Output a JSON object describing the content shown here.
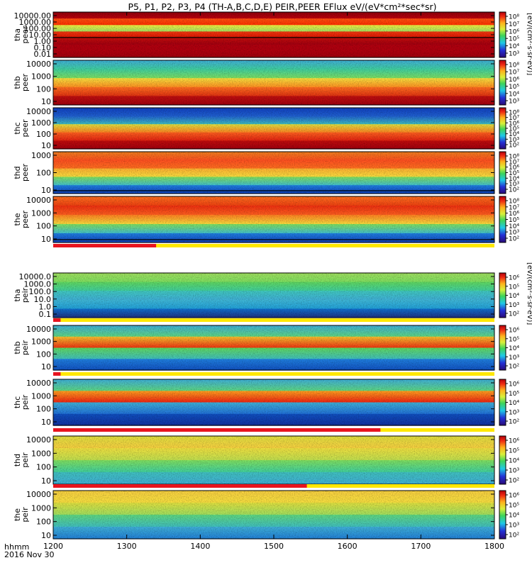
{
  "title": "P5, P1, P2, P3, P4 (TH-A,B,C,D,E) PEIR,PEER EFlux eV/(eV*cm²*sec*sr)",
  "chart_data": {
    "type": "heatmap",
    "title": "P5, P1, P2, P3, P4 (TH-A,B,C,D,E) PEIR,PEER EFlux eV/(eV*cm²*sec*sr)",
    "x_ticks": [
      "1200",
      "1300",
      "1400",
      "1500",
      "1600",
      "1700",
      "1800"
    ],
    "x_range": [
      1200,
      1800
    ],
    "time_label": "hhmm",
    "date_label": "2016 Nov 30",
    "colorbar_unit_label": "[eV/(cm²·s·sr·eV)]",
    "panels": [
      {
        "probe": "tha",
        "species": "peer",
        "label": [
          "tha",
          "peer"
        ],
        "y_scale": "log",
        "y_ticks": [
          "10000.00",
          "1000.00",
          "100.00",
          "10.00",
          "1.00",
          "0.10",
          "0.01"
        ],
        "colorbar_ticks": [
          "10⁸",
          "10⁷",
          "10⁶",
          "10⁵",
          "10⁴",
          "10³"
        ],
        "bands": [
          {
            "from": "#8f000c",
            "to": "#c2000c"
          },
          {
            "from": "#ff5010",
            "to": "#ff3000"
          },
          {
            "from": "#f0f040",
            "to": "#a0e060"
          },
          {
            "from": "#ef3a10",
            "to": "#e01000"
          },
          {
            "from": "#c40c0c",
            "to": "#a00010"
          },
          {
            "from": "#b0000f",
            "to": "#b0000f"
          },
          {
            "from": "#b0000f",
            "to": "#a0000e"
          }
        ],
        "overlay_line": true,
        "flag": "none"
      },
      {
        "probe": "thb",
        "species": "peer",
        "label": [
          "thb",
          "peer"
        ],
        "y_scale": "log",
        "y_ticks": [
          "10000",
          "1000",
          "100",
          "10"
        ],
        "colorbar_ticks": [
          "10⁸",
          "10⁷",
          "10⁶",
          "10⁵",
          "10⁴",
          "10³"
        ],
        "bands": [
          {
            "from": "#40b0d8",
            "to": "#40d0a0"
          },
          {
            "from": "#40d0a0",
            "to": "#80e060"
          },
          {
            "from": "#f8e040",
            "to": "#ff9020"
          },
          {
            "from": "#ff7020",
            "to": "#e03010"
          },
          {
            "from": "#c01010",
            "to": "#a0000e"
          }
        ],
        "overlay_line": false,
        "flag": "none"
      },
      {
        "probe": "thc",
        "species": "peer",
        "label": [
          "thc",
          "peer"
        ],
        "y_scale": "log",
        "y_ticks": [
          "10000",
          "1000",
          "100",
          "10"
        ],
        "colorbar_ticks": [
          "10⁸",
          "10⁷",
          "10⁶",
          "10⁵",
          "10⁴",
          "10³",
          "10²"
        ],
        "bands": [
          {
            "from": "#1040c0",
            "to": "#2060d0"
          },
          {
            "from": "#2060d0",
            "to": "#40c0c0"
          },
          {
            "from": "#e0e040",
            "to": "#ff8020"
          },
          {
            "from": "#ff6020",
            "to": "#e02010"
          },
          {
            "from": "#c00c0c",
            "to": "#a0000e"
          }
        ],
        "overlay_line": false,
        "flag": "none"
      },
      {
        "probe": "thd",
        "species": "peer",
        "label": [
          "thd",
          "peer"
        ],
        "y_scale": "log",
        "y_ticks": [
          "1000",
          "100",
          "10"
        ],
        "colorbar_ticks": [
          "10⁸",
          "10⁷",
          "10⁶",
          "10⁵",
          "10⁴",
          "10³",
          "10²"
        ],
        "bands": [
          {
            "from": "#f08020",
            "to": "#ff5020"
          },
          {
            "from": "#ff5020",
            "to": "#ff7020"
          },
          {
            "from": "#ffb030",
            "to": "#f8e040"
          },
          {
            "from": "#80e060",
            "to": "#40c0d0"
          },
          {
            "from": "#2080e0",
            "to": "#1040c0"
          }
        ],
        "overlay_line": true,
        "flag": "none"
      },
      {
        "probe": "the",
        "species": "peer",
        "label": [
          "the",
          "peer"
        ],
        "y_scale": "log",
        "y_ticks": [
          "10000",
          "1000",
          "100",
          "10"
        ],
        "colorbar_ticks": [
          "10⁸",
          "10⁷",
          "10⁶",
          "10⁵",
          "10⁴",
          "10³",
          "10²"
        ],
        "bands": [
          {
            "from": "#ff7020",
            "to": "#ef4010"
          },
          {
            "from": "#ef3010",
            "to": "#ff6020"
          },
          {
            "from": "#ff8020",
            "to": "#f8e040"
          },
          {
            "from": "#80e060",
            "to": "#40c0d0"
          },
          {
            "from": "#2080e0",
            "to": "#1040c0"
          }
        ],
        "overlay_line": true,
        "flag": "partial",
        "flag_end": 1340
      },
      {
        "probe": "tha",
        "species": "peir",
        "label": [
          "tha",
          "peir"
        ],
        "y_scale": "log",
        "y_ticks": [
          "10000.0",
          "1000.0",
          "100.0",
          "10.0",
          "1.0",
          "0.1"
        ],
        "colorbar_ticks": [
          "10⁶",
          "10⁵",
          "10⁴",
          "10³",
          "10²"
        ],
        "bands": [
          {
            "from": "#a0e060",
            "to": "#80e060"
          },
          {
            "from": "#60d860",
            "to": "#40d0a0"
          },
          {
            "from": "#40c8c0",
            "to": "#40b0d8"
          },
          {
            "from": "#40b8d8",
            "to": "#20a0d8"
          },
          {
            "from": "#1070d0",
            "to": "#203080"
          }
        ],
        "overlay_line": false,
        "flag": "partial",
        "flag_end": 1210
      },
      {
        "probe": "thb",
        "species": "peir",
        "label": [
          "thb",
          "peir"
        ],
        "y_scale": "log",
        "y_ticks": [
          "10000",
          "1000",
          "100",
          "10"
        ],
        "colorbar_ticks": [
          "10⁶",
          "10⁵",
          "10⁴",
          "10³",
          "10²"
        ],
        "bands": [
          {
            "from": "#40b0d8",
            "to": "#60d880"
          },
          {
            "from": "#f8c030",
            "to": "#ef3010"
          },
          {
            "from": "#60d860",
            "to": "#40c0c0"
          },
          {
            "from": "#2080e0",
            "to": "#1050c0"
          }
        ],
        "overlay_line": false,
        "flag": "partial",
        "flag_end": 1210
      },
      {
        "probe": "thc",
        "species": "peir",
        "label": [
          "thc",
          "peir"
        ],
        "y_scale": "log",
        "y_ticks": [
          "10000",
          "1000",
          "100",
          "10"
        ],
        "colorbar_ticks": [
          "10⁶",
          "10⁵",
          "10⁴",
          "10³",
          "10²"
        ],
        "bands": [
          {
            "from": "#40b0d8",
            "to": "#60d880"
          },
          {
            "from": "#ffa020",
            "to": "#ef2010"
          },
          {
            "from": "#40b0d8",
            "to": "#2070d8"
          },
          {
            "from": "#1050c0",
            "to": "#1030a0"
          }
        ],
        "overlay_line": false,
        "flag": "partial",
        "flag_end": 1645
      },
      {
        "probe": "thd",
        "species": "peir",
        "label": [
          "thd",
          "peir"
        ],
        "y_scale": "log",
        "y_ticks": [
          "10000",
          "1000",
          "100",
          "10"
        ],
        "colorbar_ticks": [
          "10⁶",
          "10⁵",
          "10⁴",
          "10³",
          "10²"
        ],
        "bands": [
          {
            "from": "#e0e040",
            "to": "#f8d040"
          },
          {
            "from": "#f0e040",
            "to": "#c0e050"
          },
          {
            "from": "#80e060",
            "to": "#40d0a0"
          },
          {
            "from": "#40c0c0",
            "to": "#40b0d8"
          }
        ],
        "overlay_line": false,
        "flag": "partial",
        "flag_end": 1545
      },
      {
        "probe": "the",
        "species": "peir",
        "label": [
          "the",
          "peir"
        ],
        "y_scale": "log",
        "y_ticks": [
          "10000",
          "1000",
          "100",
          "10"
        ],
        "colorbar_ticks": [
          "10⁶",
          "10⁵",
          "10⁴",
          "10³",
          "10²"
        ],
        "bands": [
          {
            "from": "#f8d040",
            "to": "#f8e040"
          },
          {
            "from": "#e0e040",
            "to": "#a0e060"
          },
          {
            "from": "#60d880",
            "to": "#40c0c0"
          },
          {
            "from": "#40b0d8",
            "to": "#2080d8"
          }
        ],
        "overlay_line": false,
        "flag": "none"
      }
    ]
  }
}
